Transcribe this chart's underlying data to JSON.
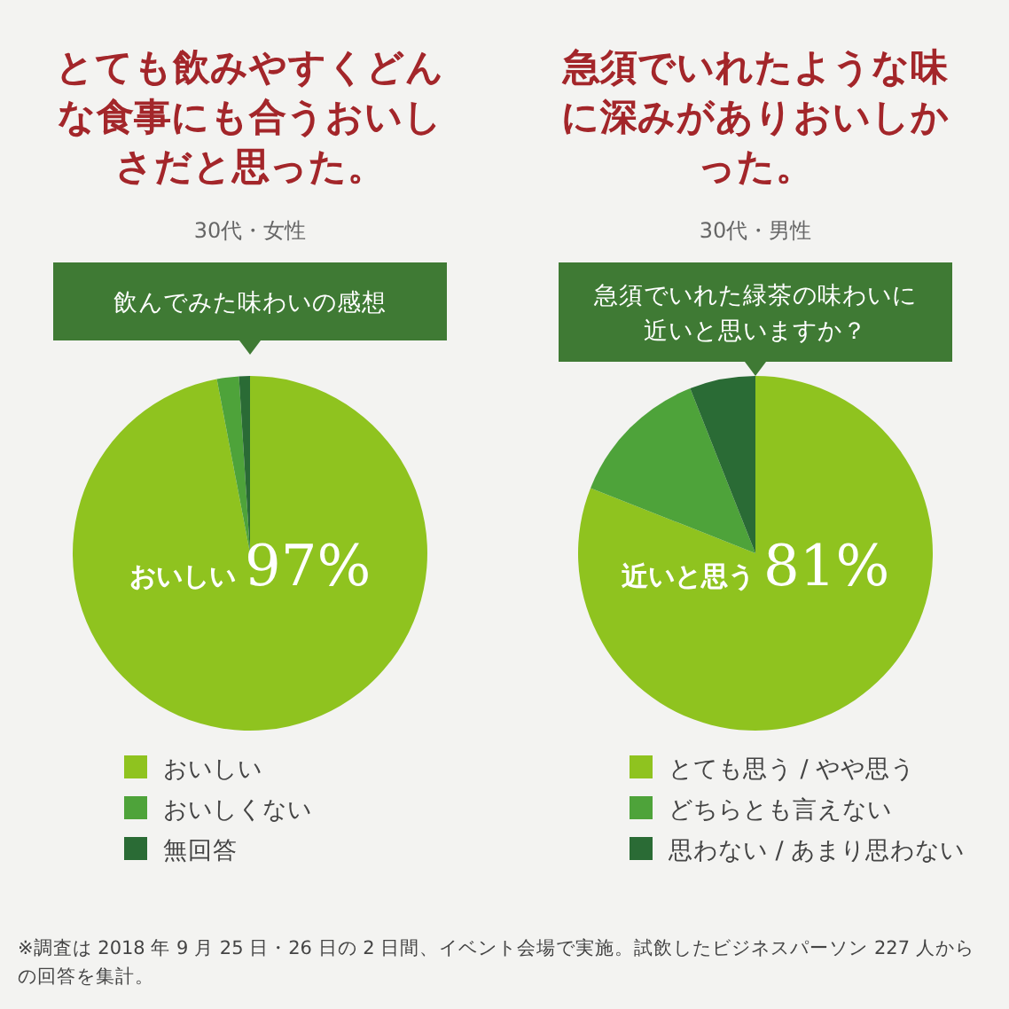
{
  "chart_data": [
    {
      "type": "pie",
      "title": "とても飲みやすくどんな食事にも合うおいしさだと思った。",
      "subtitle": "30代・女性",
      "categories": [
        "おいしい",
        "おいしくない",
        "無回答"
      ],
      "values": [
        97,
        2,
        1
      ],
      "colors": [
        "#8fc31f",
        "#4ea33a",
        "#2a6b35"
      ],
      "value_labels": [
        "97%",
        null,
        null
      ],
      "legend": "bottom",
      "annotations": [
        "飲んでみた味わいの感想"
      ]
    },
    {
      "type": "pie",
      "title": "急須でいれたような味に深みがありおいしかった。",
      "subtitle": "30代・男性",
      "categories": [
        "とても思う / やや思う",
        "どちらとも言えない",
        "思わない / あまり思わない"
      ],
      "values": [
        81,
        13,
        6
      ],
      "colors": [
        "#8fc31f",
        "#4ea33a",
        "#2a6b35"
      ],
      "value_labels": [
        "81%",
        null,
        null
      ],
      "legend": "bottom",
      "annotations": [
        "急須でいれた緑茶の味わいに近いと思いますか？",
        "近いと思う",
        "※調査は 2018 年 9 月 25 日・26 日の 2 日間、イベント会場で実施。試飲したビジネスパーソン 227 人からの回答を集計。"
      ]
    }
  ]
}
